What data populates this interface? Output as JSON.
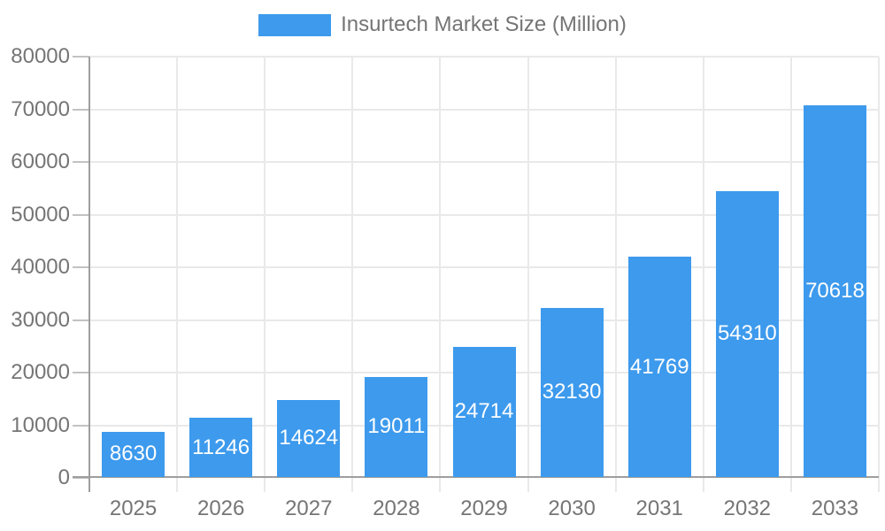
{
  "legend": {
    "label": "Insurtech Market Size (Million)"
  },
  "chart_data": {
    "type": "bar",
    "title": "Insurtech Market Size (Million)",
    "categories": [
      "2025",
      "2026",
      "2027",
      "2028",
      "2029",
      "2030",
      "2031",
      "2032",
      "2033"
    ],
    "series": [
      {
        "name": "Insurtech Market Size (Million)",
        "values": [
          8630,
          11246,
          14624,
          19011,
          24714,
          32130,
          41769,
          54310,
          70618
        ]
      }
    ],
    "xlabel": "",
    "ylabel": "",
    "ylim": [
      0,
      80000
    ],
    "yticks": [
      0,
      10000,
      20000,
      30000,
      40000,
      50000,
      60000,
      70000,
      80000
    ],
    "grid": true,
    "legend_position": "top-center",
    "value_label_position": "inside-center",
    "colors": {
      "bar": "#3d9aed",
      "value_label": "#ffffff",
      "axis_text": "#757575",
      "axis_line": "#9e9e9e",
      "gridline": "#e9e9e9",
      "tick": "#c2c2c2",
      "background": "#ffffff"
    }
  }
}
